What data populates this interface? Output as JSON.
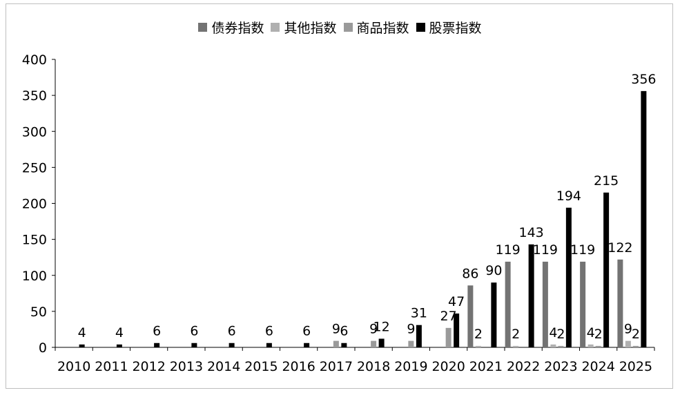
{
  "chart_data": {
    "type": "bar",
    "categories": [
      "2010",
      "2011",
      "2012",
      "2013",
      "2014",
      "2015",
      "2016",
      "2017",
      "2018",
      "2019",
      "2020",
      "2021",
      "2022",
      "2023",
      "2024",
      "2025"
    ],
    "series": [
      {
        "name": "债券指数",
        "color": "#737373",
        "values": [
          0,
          0,
          0,
          0,
          0,
          0,
          0,
          0,
          0,
          0,
          0,
          86,
          119,
          119,
          119,
          122
        ],
        "labels": [
          null,
          null,
          null,
          null,
          null,
          null,
          null,
          null,
          null,
          null,
          null,
          "86",
          "119",
          "119",
          "119",
          "122"
        ]
      },
      {
        "name": "其他指数",
        "color": "#b0b0b0",
        "values": [
          0,
          0,
          0,
          0,
          0,
          0,
          0,
          0,
          0,
          0,
          0,
          2,
          2,
          4,
          4,
          9
        ],
        "labels": [
          null,
          null,
          null,
          null,
          null,
          null,
          null,
          null,
          null,
          null,
          null,
          "2",
          "2",
          "4",
          "4",
          "9"
        ]
      },
      {
        "name": "商品指数",
        "color": "#9a9a9a",
        "values": [
          0,
          0,
          0,
          0,
          0,
          0,
          0,
          9,
          9,
          9,
          27,
          0,
          0,
          2,
          2,
          2
        ],
        "labels": [
          null,
          null,
          null,
          null,
          null,
          null,
          null,
          "9",
          "9",
          "9",
          "27",
          null,
          null,
          "2",
          "2",
          "2"
        ]
      },
      {
        "name": "股票指数",
        "color": "#000000",
        "values": [
          4,
          4,
          6,
          6,
          6,
          6,
          6,
          6,
          12,
          31,
          47,
          90,
          143,
          194,
          215,
          356
        ],
        "labels": [
          "4",
          "4",
          "6",
          "6",
          "6",
          "6",
          "6",
          "6",
          "12",
          "31",
          "47",
          "90",
          "143",
          "194",
          "215",
          "356"
        ]
      }
    ],
    "ylim": [
      0,
      400
    ],
    "yticks": [
      0,
      50,
      100,
      150,
      200,
      250,
      300,
      350,
      400
    ],
    "grid": false,
    "legend_position": "top"
  }
}
